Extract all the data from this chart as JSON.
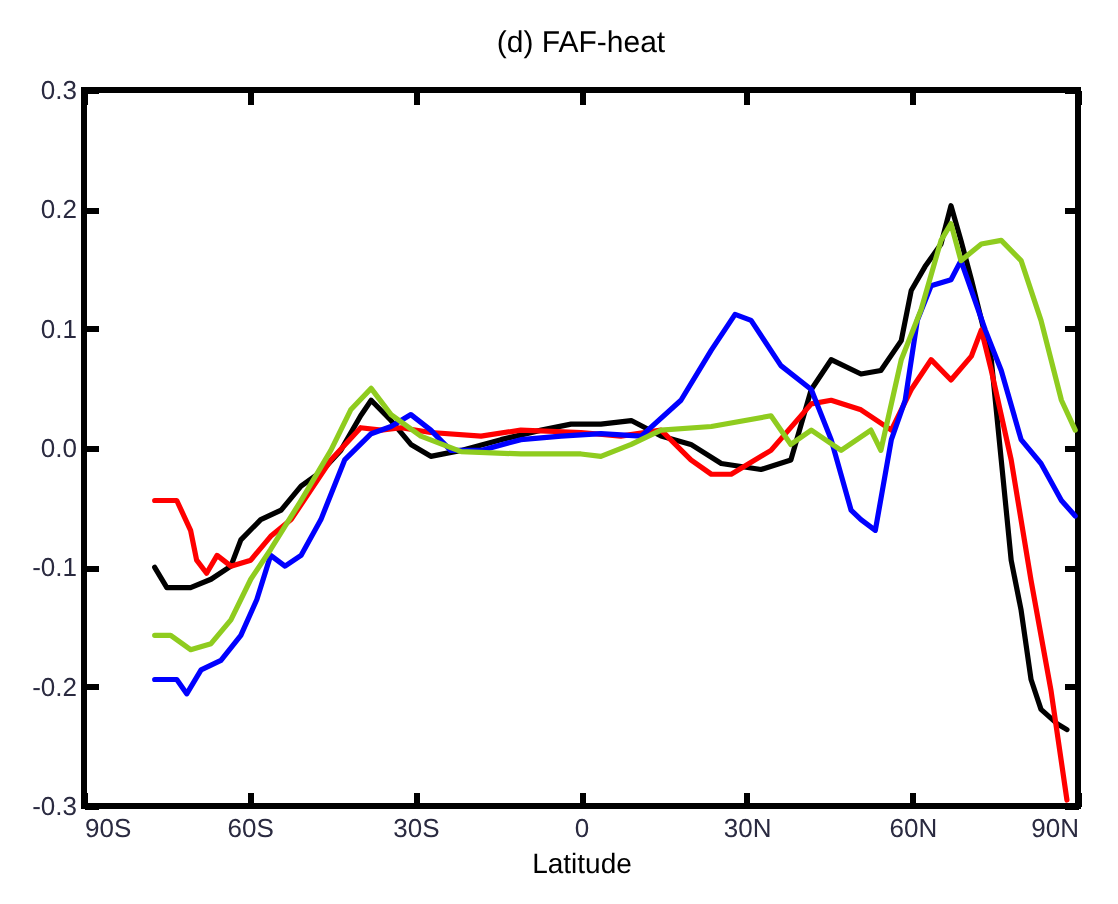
{
  "chart_data": {
    "type": "line",
    "title": "(d) FAF-heat",
    "xlabel": "Latitude",
    "xlim": [
      -90,
      90
    ],
    "ylim": [
      -0.3,
      0.3
    ],
    "xticks": [
      {
        "value": -90,
        "label": "90S"
      },
      {
        "value": -60,
        "label": "60S"
      },
      {
        "value": -30,
        "label": "30S"
      },
      0,
      {
        "value": 30,
        "label": "30N"
      },
      {
        "value": 60,
        "label": "60N"
      },
      {
        "value": 90,
        "label": "90N"
      }
    ],
    "yticks": [
      {
        "value": -0.3,
        "label": "-0.3"
      },
      {
        "value": -0.2,
        "label": "-0.2"
      },
      {
        "value": -0.1,
        "label": "-0.1"
      },
      {
        "value": 0,
        "label": "0.0"
      },
      {
        "value": 0.1,
        "label": "0.1"
      },
      {
        "value": 0.2,
        "label": "0.2"
      },
      {
        "value": 0.3,
        "label": "0.3"
      }
    ],
    "series": [
      {
        "color": "#000000",
        "x": [
          -77.2,
          -75,
          -70.7,
          -67,
          -63.4,
          -61.6,
          -58,
          -54.3,
          -50.7,
          -47.1,
          -43.5,
          -39.9,
          -38,
          -34.4,
          -30.8,
          -27.2,
          -21.7,
          -14.5,
          -7.2,
          -1.8,
          3.6,
          9.1,
          14.5,
          19.9,
          25.4,
          32.6,
          38,
          41.7,
          45.3,
          50.7,
          54.3,
          58,
          59.8,
          62.3,
          65.2,
          67,
          68.8,
          70.7,
          74.3,
          76.1,
          77.9,
          79.7,
          81.5,
          83.3,
          86.2,
          88
        ],
        "values": [
          -0.1,
          -0.117,
          -0.117,
          -0.11,
          -0.099,
          -0.077,
          -0.06,
          -0.052,
          -0.032,
          -0.02,
          -0.002,
          0.027,
          0.04,
          0.023,
          0.003,
          -0.007,
          -0.002,
          0.007,
          0.015,
          0.02,
          0.02,
          0.023,
          0.01,
          0.003,
          -0.013,
          -0.018,
          -0.01,
          0.049,
          0.074,
          0.062,
          0.065,
          0.09,
          0.132,
          0.152,
          0.171,
          0.203,
          0.174,
          0.141,
          0.074,
          -0.01,
          -0.094,
          -0.136,
          -0.194,
          -0.219,
          -0.231,
          -0.236
        ]
      },
      {
        "color": "#ff0000",
        "x": [
          -77.2,
          -73.2,
          -70.7,
          -69.6,
          -67.8,
          -65.9,
          -63.4,
          -59.8,
          -56.2,
          -52.5,
          -48.9,
          -45.3,
          -39.9,
          -36.2,
          -32.6,
          -27.2,
          -18.1,
          -10.9,
          0,
          7.2,
          14.5,
          19.9,
          23.6,
          27.2,
          34.4,
          41.7,
          45.3,
          50.7,
          56.2,
          59.8,
          63.4,
          67,
          70.7,
          72.5,
          74.3,
          77.9,
          81.5,
          85.1,
          88
        ],
        "values": [
          -0.044,
          -0.044,
          -0.069,
          -0.094,
          -0.105,
          -0.09,
          -0.099,
          -0.094,
          -0.074,
          -0.06,
          -0.035,
          -0.01,
          0.017,
          0.015,
          0.017,
          0.013,
          0.01,
          0.015,
          0.013,
          0.01,
          0.015,
          -0.01,
          -0.022,
          -0.022,
          -0.002,
          0.037,
          0.04,
          0.032,
          0.015,
          0.049,
          0.074,
          0.057,
          0.077,
          0.099,
          0.065,
          -0.01,
          -0.111,
          -0.203,
          -0.295
        ]
      },
      {
        "color": "#0000ff",
        "x": [
          -77.2,
          -73.2,
          -71.4,
          -68.8,
          -65.2,
          -61.6,
          -58.7,
          -56.2,
          -53.6,
          -50.7,
          -47.1,
          -42.8,
          -38,
          -34.4,
          -30.8,
          -27.2,
          -23.6,
          -18.1,
          -10.9,
          -3.6,
          3.6,
          10.9,
          18.1,
          23.6,
          27.9,
          30.8,
          36.2,
          41.7,
          45.3,
          48.9,
          50.7,
          53.3,
          56.2,
          58.7,
          60.9,
          63.4,
          67,
          68.8,
          70.7,
          73.2,
          76.1,
          79.7,
          83.3,
          87,
          89.5
        ],
        "values": [
          -0.194,
          -0.194,
          -0.206,
          -0.186,
          -0.178,
          -0.157,
          -0.127,
          -0.09,
          -0.099,
          -0.09,
          -0.06,
          -0.01,
          0.012,
          0.018,
          0.028,
          0.015,
          -0.002,
          -0.002,
          0.007,
          0.01,
          0.012,
          0.01,
          0.04,
          0.082,
          0.112,
          0.107,
          0.069,
          0.049,
          0.007,
          -0.052,
          -0.06,
          -0.069,
          0.007,
          0.04,
          0.107,
          0.136,
          0.141,
          0.157,
          0.132,
          0.099,
          0.065,
          0.007,
          -0.013,
          -0.044,
          -0.057
        ]
      },
      {
        "color": "#8fcc1f",
        "x": [
          -77.2,
          -74.3,
          -70.7,
          -67,
          -63.4,
          -59.8,
          -56.2,
          -50.7,
          -45.3,
          -41.7,
          -38,
          -34.4,
          -29,
          -21.7,
          -10.9,
          0,
          3.6,
          9.1,
          14.5,
          23.6,
          34.4,
          38,
          41.7,
          47.1,
          52.5,
          54.3,
          58,
          61.6,
          65.2,
          67,
          68.8,
          72.5,
          76.1,
          79.7,
          83.3,
          87,
          89.5
        ],
        "values": [
          -0.157,
          -0.157,
          -0.169,
          -0.164,
          -0.144,
          -0.11,
          -0.085,
          -0.044,
          -0.002,
          0.032,
          0.05,
          0.028,
          0.01,
          -0.003,
          -0.005,
          -0.005,
          -0.007,
          0.003,
          0.015,
          0.018,
          0.027,
          0.003,
          0.015,
          -0.002,
          0.015,
          -0.002,
          0.074,
          0.116,
          0.174,
          0.188,
          0.157,
          0.171,
          0.174,
          0.157,
          0.107,
          0.04,
          0.015
        ]
      }
    ]
  }
}
